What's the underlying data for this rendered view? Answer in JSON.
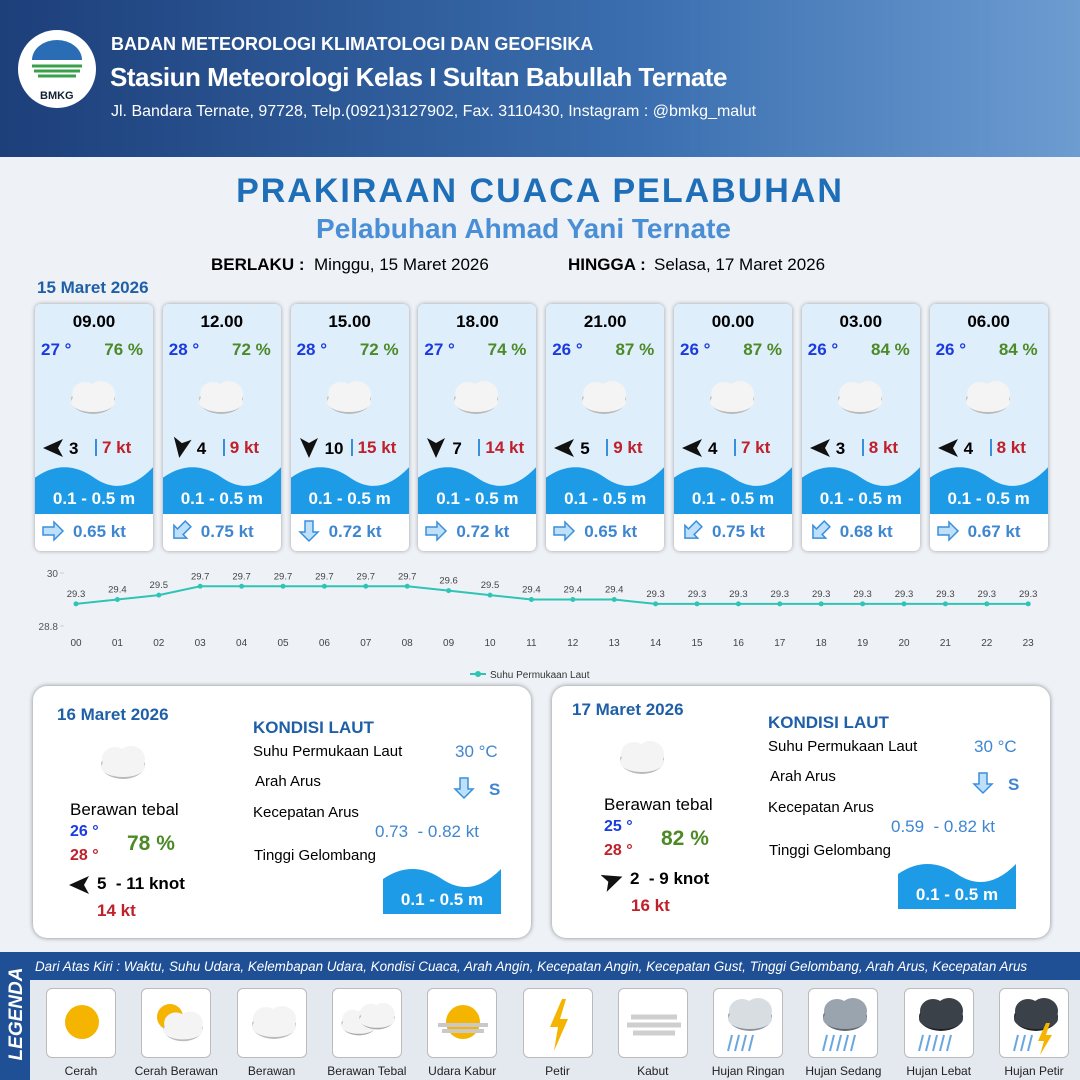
{
  "header": {
    "logo": "BMKG",
    "agency": "BADAN METEOROLOGI KLIMATOLOGI DAN GEOFISIKA",
    "station": "Stasiun Meteorologi Kelas I Sultan Babullah Ternate",
    "address": "Jl. Bandara Ternate, 97728, Telp.(0921)3127902, Fax. 3110430, Instagram : @bmkg_malut"
  },
  "title": "PRAKIRAAN CUACA PELABUHAN",
  "subtitle": "Pelabuhan Ahmad Yani Ternate",
  "validity": {
    "from_label": "BERLAKU :",
    "from": "Minggu, 15 Maret 2026",
    "to_label": "HINGGA :",
    "to": "Selasa, 17 Maret 2026"
  },
  "day1": {
    "date": "15 Maret 2026",
    "slots": [
      {
        "time": "09.00",
        "temp": "27 °",
        "humidity": "76 %",
        "wind": "3",
        "gust": "7 kt",
        "wave": "0.1 - 0.5 m",
        "current": "0.65 kt"
      },
      {
        "time": "12.00",
        "temp": "28 °",
        "humidity": "72 %",
        "wind": "4",
        "gust": "9 kt",
        "wave": "0.1 - 0.5 m",
        "current": "0.75 kt"
      },
      {
        "time": "15.00",
        "temp": "28 °",
        "humidity": "72 %",
        "wind": "10",
        "gust": "15 kt",
        "wave": "0.1 - 0.5 m",
        "current": "0.72 kt"
      },
      {
        "time": "18.00",
        "temp": "27 °",
        "humidity": "74 %",
        "wind": "7",
        "gust": "14 kt",
        "wave": "0.1 - 0.5 m",
        "current": "0.72 kt"
      },
      {
        "time": "21.00",
        "temp": "26 °",
        "humidity": "87 %",
        "wind": "5",
        "gust": "9 kt",
        "wave": "0.1 - 0.5 m",
        "current": "0.65 kt"
      },
      {
        "time": "00.00",
        "temp": "26 °",
        "humidity": "87 %",
        "wind": "4",
        "gust": "7 kt",
        "wave": "0.1 - 0.5 m",
        "current": "0.75 kt"
      },
      {
        "time": "03.00",
        "temp": "26 °",
        "humidity": "84 %",
        "wind": "3",
        "gust": "8 kt",
        "wave": "0.1 - 0.5 m",
        "current": "0.68 kt"
      },
      {
        "time": "06.00",
        "temp": "26 °",
        "humidity": "84 %",
        "wind": "4",
        "gust": "8 kt",
        "wave": "0.1 - 0.5 m",
        "current": "0.67 kt"
      }
    ]
  },
  "sst_chart": {
    "type": "line",
    "categories": [
      "00",
      "01",
      "02",
      "03",
      "04",
      "05",
      "06",
      "07",
      "08",
      "09",
      "10",
      "11",
      "12",
      "13",
      "14",
      "15",
      "16",
      "17",
      "18",
      "19",
      "20",
      "21",
      "22",
      "23"
    ],
    "series": [
      {
        "name": "Suhu Permukaan Laut",
        "color": "#2ec4b6",
        "values": [
          29.3,
          29.4,
          29.5,
          29.7,
          29.7,
          29.7,
          29.7,
          29.7,
          29.7,
          29.6,
          29.5,
          29.4,
          29.4,
          29.4,
          29.3,
          29.3,
          29.3,
          29.3,
          29.3,
          29.3,
          29.3,
          29.3,
          29.3,
          29.3
        ]
      }
    ],
    "ylim": [
      28.8,
      30
    ],
    "yticks": [
      28.8,
      30
    ]
  },
  "days": [
    {
      "date": "16 Maret 2026",
      "condition": "Berawan tebal",
      "temp_min": "26 °",
      "temp_max": "28 °",
      "humidity": "78 %",
      "wind": "5  - 11 knot",
      "gust": "14 kt",
      "sea": {
        "heading": "KONDISI LAUT",
        "sst_label": "Suhu Permukaan Laut",
        "sst": "30 °C",
        "dir_label": "Arah Arus",
        "dir": "S",
        "speed_label": "Kecepatan Arus",
        "speed": "0.73  - 0.82 kt",
        "wave_label": "Tinggi Gelombang",
        "wave": "0.1 - 0.5 m"
      }
    },
    {
      "date": "17 Maret 2026",
      "condition": "Berawan tebal",
      "temp_min": "25 °",
      "temp_max": "28 °",
      "humidity": "82 %",
      "wind": "2  - 9 knot",
      "gust": "16 kt",
      "sea": {
        "heading": "KONDISI LAUT",
        "sst_label": "Suhu Permukaan Laut",
        "sst": "30 °C",
        "dir_label": "Arah Arus",
        "dir": "S",
        "speed_label": "Kecepatan Arus",
        "speed": "0.59  - 0.82 kt",
        "wave_label": "Tinggi Gelombang",
        "wave": "0.1 - 0.5 m"
      }
    }
  ],
  "legend": {
    "title": "LEGENDA",
    "description": "Dari Atas Kiri : Waktu, Suhu Udara, Kelembapan Udara, Kondisi Cuaca, Arah Angin, Kecepatan Angin, Kecepatan Gust, Tinggi Gelombang, Arah Arus, Kecepatan Arus",
    "items": [
      "Cerah",
      "Cerah Berawan",
      "Berawan",
      "Berawan Tebal",
      "Udara Kabur",
      "Petir",
      "Kabut",
      "Hujan Ringan",
      "Hujan Sedang",
      "Hujan Lebat",
      "Hujan Petir"
    ]
  }
}
